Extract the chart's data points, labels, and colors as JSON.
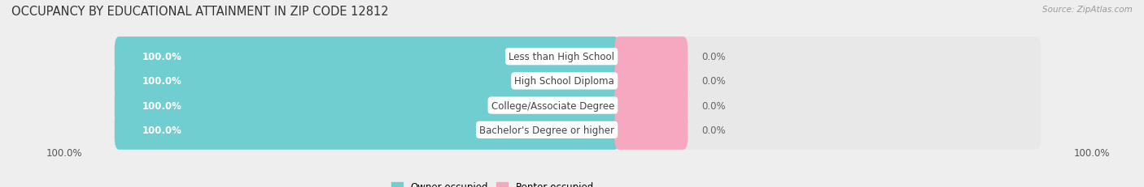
{
  "title": "OCCUPANCY BY EDUCATIONAL ATTAINMENT IN ZIP CODE 12812",
  "source": "Source: ZipAtlas.com",
  "categories": [
    "Less than High School",
    "High School Diploma",
    "College/Associate Degree",
    "Bachelor's Degree or higher"
  ],
  "owner_values": [
    100.0,
    100.0,
    100.0,
    100.0
  ],
  "renter_values": [
    0.0,
    0.0,
    0.0,
    0.0
  ],
  "owner_color": "#70cdd0",
  "renter_color": "#f5a8bf",
  "bg_color": "#eeeeee",
  "bar_bg_color": "#e8e8e8",
  "title_fontsize": 10.5,
  "label_fontsize": 8.5,
  "tick_fontsize": 8.5,
  "legend_fontsize": 8.5,
  "source_fontsize": 7.5,
  "bottom_left_label": "100.0%",
  "bottom_right_label": "100.0%",
  "renter_bar_width": 8.0,
  "total_bar_width": 100.0
}
